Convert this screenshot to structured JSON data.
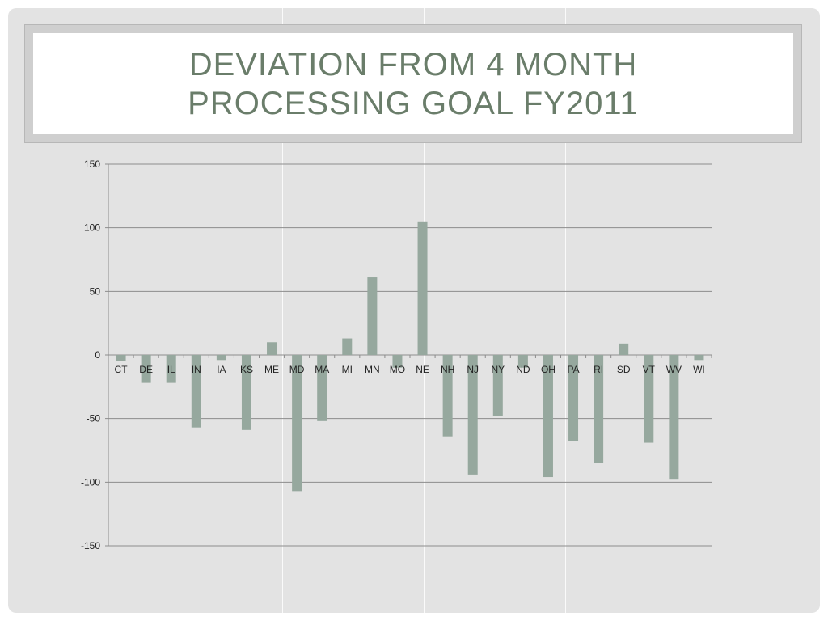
{
  "slide": {
    "title": "Deviation from 4 month processing goal FY2011"
  },
  "colors": {
    "bar": "#96a89e",
    "grid": "#8c8c8c",
    "title": "#6a7d6a",
    "background": "#e3e3e3"
  },
  "chart_data": {
    "type": "bar",
    "title": "",
    "xlabel": "",
    "ylabel": "",
    "ylim": [
      -150,
      150
    ],
    "yticks": [
      150,
      100,
      50,
      0,
      -50,
      -100,
      -150
    ],
    "grid": "horizontal",
    "legend": "none",
    "categories": [
      "CT",
      "DE",
      "IL",
      "IN",
      "IA",
      "KS",
      "ME",
      "MD",
      "MA",
      "MI",
      "MN",
      "MO",
      "NE",
      "NH",
      "NJ",
      "NY",
      "ND",
      "OH",
      "PA",
      "RI",
      "SD",
      "VT",
      "WV",
      "WI"
    ],
    "values": [
      -5,
      -22,
      -22,
      -57,
      -4,
      -59,
      10,
      -107,
      -52,
      13,
      61,
      -10,
      105,
      -64,
      -94,
      -48,
      -10,
      -96,
      -68,
      -85,
      9,
      -69,
      -98,
      -4
    ]
  }
}
